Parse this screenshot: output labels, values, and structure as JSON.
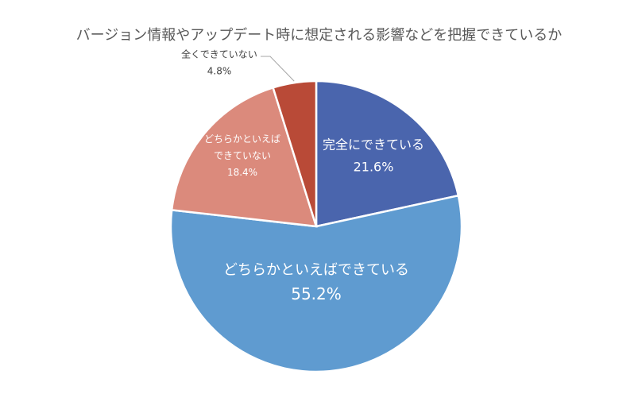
{
  "chart_data": {
    "type": "pie",
    "title": "バージョン情報やアップデート時に想定される影響などを把握できているか",
    "slices": [
      {
        "label": "完全にできている",
        "value": 21.6,
        "value_label": "21.6%",
        "color": "#4a65ad",
        "text_color": "#ffffff"
      },
      {
        "label": "どちらかといえばできている",
        "value": 55.2,
        "value_label": "55.2%",
        "color": "#5f9bd0",
        "text_color": "#ffffff"
      },
      {
        "label": "どちらかといえばできていない",
        "value": 18.4,
        "value_label": "18.4%",
        "color": "#db8a7c",
        "text_color": "#ffffff"
      },
      {
        "label": "全くできていない",
        "value": 4.8,
        "value_label": "4.8%",
        "color": "#b94a37",
        "text_color": "#404040"
      }
    ],
    "start_angle": "12 o'clock",
    "direction": "clockwise",
    "legend": "none"
  }
}
